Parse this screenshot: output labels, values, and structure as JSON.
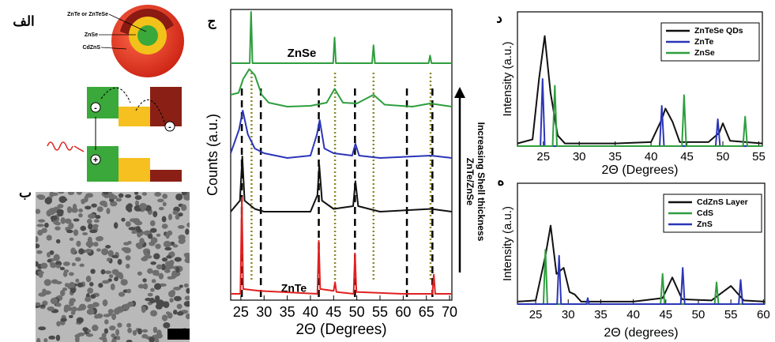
{
  "panel_labels": [
    "الف",
    "ب",
    "ج",
    "د",
    "ه"
  ],
  "schematic": {
    "shell_labels": [
      "ZnTe or ZnTeSe",
      "ZnSe",
      "CdZnS"
    ],
    "charges": [
      "-",
      "-",
      "+"
    ]
  },
  "chart_data": [
    {
      "type": "line",
      "xlabel": "2Θ (Degrees)",
      "ylabel": "Counts (a.u.)",
      "annotations": [
        "ZnSe",
        "ZnTe"
      ],
      "arrow_label": [
        "ZnTe/ZnSe",
        "Increasing Shell thickness"
      ],
      "xlim": [
        22.8,
        70.5
      ],
      "ylim": [
        0,
        1
      ],
      "xticks": [
        25,
        30,
        35,
        40,
        45,
        50,
        55,
        60,
        65,
        70
      ],
      "reference_lines": [
        {
          "style": "dashed",
          "color": "#000000",
          "x": [
            25.2,
            29.3,
            41.8,
            49.6,
            60.8,
            66.3
          ]
        },
        {
          "style": "dotted",
          "color": "#8b8a2a",
          "x": [
            27.3,
            45.3,
            53.6,
            65.9
          ]
        }
      ],
      "series": [
        {
          "color": "#2e9e3e",
          "x": [
            22.8,
            26.9,
            27.2,
            27.5,
            44.9,
            45.2,
            45.5,
            53.3,
            53.6,
            53.9,
            65.5,
            65.8,
            66.1,
            70.5
          ],
          "values": [
            0,
            0,
            1,
            0,
            0,
            0.5,
            0,
            0,
            0.35,
            0,
            0,
            0.15,
            0,
            0
          ]
        },
        {
          "color": "#2e9e3e",
          "x": [
            22.8,
            24.5,
            25.5,
            26.8,
            28,
            29.5,
            31,
            35,
            40,
            43.5,
            45.2,
            47,
            50,
            53.6,
            56,
            62,
            65.8,
            70.5
          ],
          "values": [
            0.3,
            0.35,
            0.7,
            0.95,
            0.8,
            0.3,
            0.1,
            0,
            0.02,
            0.1,
            0.45,
            0.1,
            0.08,
            0.3,
            0.05,
            0,
            0.08,
            0
          ]
        },
        {
          "color": "#2b35b8",
          "x": [
            22.8,
            24.6,
            25.4,
            26.5,
            28,
            30,
            35,
            40,
            41.4,
            42,
            43,
            45,
            49,
            49.7,
            50.5,
            55,
            66,
            70.5
          ],
          "values": [
            0.1,
            0.6,
            1,
            0.5,
            0.2,
            0.1,
            0,
            0.05,
            0.5,
            0.8,
            0.2,
            0.1,
            0.05,
            0.3,
            0.05,
            0,
            0.05,
            0
          ]
        },
        {
          "color": "#111111",
          "x": [
            22.8,
            24.8,
            25.3,
            25.8,
            28,
            30,
            40,
            41.5,
            41.9,
            42.5,
            45,
            49.2,
            49.7,
            50.3,
            55,
            66,
            70.5
          ],
          "values": [
            0,
            0.2,
            1,
            0.2,
            0.05,
            0,
            0,
            0.3,
            0.85,
            0.2,
            0.05,
            0.1,
            0.55,
            0.1,
            0,
            0.05,
            0
          ]
        },
        {
          "color": "#e02020",
          "x": [
            22.8,
            24.9,
            25.2,
            25.5,
            29,
            41.5,
            41.8,
            42.1,
            45,
            45.3,
            45.6,
            49.3,
            49.6,
            49.9,
            60,
            66.3,
            66.6,
            66.9,
            70.5
          ],
          "values": [
            0,
            0,
            1,
            0.05,
            0.03,
            0,
            0.55,
            0.05,
            0.03,
            0.12,
            0.02,
            0,
            0.42,
            0.02,
            0,
            0,
            0.2,
            0,
            0
          ]
        }
      ]
    },
    {
      "type": "line",
      "xlabel": "2Θ (Degrees)",
      "ylabel": "Intensity (a.u.)",
      "xlim": [
        21.4,
        55.5
      ],
      "ylim": [
        0,
        1
      ],
      "xticks": [
        25,
        30,
        35,
        40,
        45,
        50,
        55
      ],
      "series": [
        {
          "name": "ZnTeSe QDs",
          "color": "#111111",
          "x": [
            21.4,
            23.5,
            24.4,
            25.2,
            26,
            27,
            28,
            35,
            40,
            41.5,
            42,
            43,
            44,
            48,
            49.5,
            50,
            51,
            55.5
          ],
          "values": [
            0.02,
            0.05,
            0.5,
            0.82,
            0.4,
            0.08,
            0.02,
            0.02,
            0.03,
            0.2,
            0.28,
            0.18,
            0.03,
            0.03,
            0.1,
            0.17,
            0.04,
            0.02
          ]
        },
        {
          "name": "ZnTe",
          "color": "#2b35b8",
          "x": [
            21.4,
            24.6,
            24.9,
            25.2,
            41.2,
            41.5,
            41.8,
            49,
            49.3,
            49.6,
            55.5
          ],
          "values": [
            0,
            0,
            0.5,
            0,
            0,
            0.3,
            0,
            0,
            0.2,
            0,
            0
          ]
        },
        {
          "name": "ZnSe",
          "color": "#2e9e3e",
          "x": [
            21.4,
            26.3,
            26.6,
            26.9,
            44.3,
            44.6,
            44.9,
            52.8,
            53.1,
            53.4,
            55.5
          ],
          "values": [
            0,
            0,
            0.45,
            0,
            0,
            0.38,
            0,
            0,
            0.22,
            0,
            0
          ]
        }
      ]
    },
    {
      "type": "line",
      "xlabel": "2Θ (degrees)",
      "ylabel": "Intensity (a.u.)",
      "xlim": [
        22.2,
        60.2
      ],
      "ylim": [
        0,
        1
      ],
      "xticks": [
        25,
        30,
        35,
        40,
        45,
        50,
        55,
        60
      ],
      "series": [
        {
          "name": "CdZnS Layer",
          "color": "#111111",
          "x": [
            22.2,
            25,
            26.5,
            27.3,
            28.2,
            29.3,
            30.2,
            31,
            32,
            40,
            44.5,
            46,
            47.5,
            52,
            55,
            57,
            60.2
          ],
          "values": [
            0.02,
            0.03,
            0.4,
            0.65,
            0.25,
            0.3,
            0.1,
            0.08,
            0.02,
            0.02,
            0.05,
            0.22,
            0.04,
            0.03,
            0.15,
            0.03,
            0.02
          ]
        },
        {
          "name": "CdS",
          "color": "#2e9e3e",
          "x": [
            22.2,
            26.2,
            26.5,
            26.8,
            44.2,
            44.5,
            44.8,
            52.5,
            52.8,
            53.1,
            60.2
          ],
          "values": [
            0,
            0,
            0.45,
            0,
            0,
            0.25,
            0,
            0,
            0.18,
            0,
            0
          ]
        },
        {
          "name": "ZnS",
          "color": "#2b35b8",
          "x": [
            22.2,
            28.3,
            28.6,
            28.9,
            32.8,
            33,
            33.2,
            47.3,
            47.6,
            47.9,
            56.2,
            56.5,
            56.8,
            60.2
          ],
          "values": [
            0,
            0,
            0.4,
            0,
            0,
            0.05,
            0,
            0,
            0.3,
            0,
            0,
            0.2,
            0,
            0
          ]
        }
      ]
    }
  ]
}
